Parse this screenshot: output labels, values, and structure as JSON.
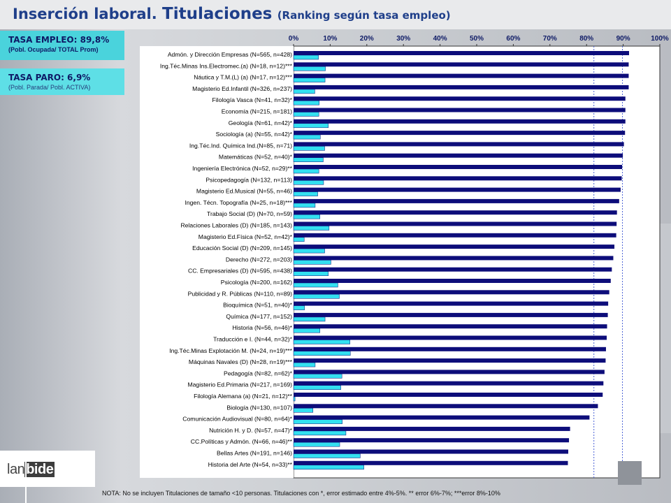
{
  "header": {
    "title_part1": "Inserción laboral.",
    "title_part2": "Titulaciones",
    "title_part3": "(Ranking según tasa empleo)"
  },
  "kpis": {
    "empleo_title": "TASA EMPLEO: 89,8%",
    "empleo_sub": "(Pobl. Ocupada/ TOTAL Prom)",
    "paro_title": "TASA PARO: 6,9%",
    "paro_sub": "(Pobl. Parada/ Pobl. ACTIVA)"
  },
  "logo": {
    "part1": "lan",
    "part2": "bide"
  },
  "note": "NOTA: No se incluyen Titulaciones de tamaño <10 personas. Titulaciones con *, error estimado entre 4%-5%. ** error 6%-7%; ***error 8%-10%",
  "colors": {
    "empleo": "#0d0d7a",
    "paro": "#33e0f0",
    "plot_bg": "#ffffff",
    "title": "#1f3f8a",
    "reference_line": "#4b62d6"
  },
  "chart_data": {
    "type": "bar",
    "orientation": "horizontal",
    "xlim": [
      0,
      100
    ],
    "x_ticks": [
      "0%",
      "10%",
      "20%",
      "30%",
      "40%",
      "50%",
      "60%",
      "70%",
      "80%",
      "90%",
      "100%"
    ],
    "reference_lines": [
      82,
      89.8
    ],
    "categories": [
      "Admón. y Dirección Empresas (N=565, n=428)",
      "Ing.Téc.Minas Ins.Electromec.(a) (N=18, n=12)***",
      "Náutica y T.M.(L) (a) (N=17, n=12)***",
      "Magisterio Ed.Infantil (N=326, n=237)",
      "Filología Vasca (N=41, n=32)*",
      "Economía (N=215, n=181)",
      "Geología (N=61, n=42)*",
      "Sociología (a) (N=55, n=42)*",
      "Ing.Téc.Ind. Química Ind.(N=85, n=71)",
      "Matemáticas (N=52, n=40)*",
      "Ingeniería Electrónica (N=52, n=29)**",
      "Psicopedagogía (N=132, n=113)",
      "Magisterio Ed.Musical (N=55, n=46)",
      "Ingen. Técn. Topografía (N=25, n=18)***",
      "Trabajo Social (D) (N=70, n=59)",
      "Relaciones Laborales (D) (N=185, n=143)",
      "Magisterio Ed.Física (N=52, n=42)*",
      "Educación Social (D) (N=209, n=145)",
      "Derecho (N=272, n=203)",
      "CC. Empresariales (D) (N=595, n=438)",
      "Psicología (N=200, n=162)",
      "Publicidad y R. Públicas (N=110, n=89)",
      "Bioquímica (N=51, n=40)*",
      "Química (N=177, n=152)",
      "Historia (N=56, n=46)*",
      "Traducción e I. (N=44, n=32)*",
      "Ing.Téc.Minas Explotación M. (N=24, n=19)***",
      "Máquinas Navales (D) (N=28, n=19)***",
      "Pedagogía (N=82, n=62)*",
      "Magisterio Ed.Primaria (N=217, n=169)",
      "Filología Alemana (a) (N=21, n=12)**",
      "Biología (N=130, n=107)",
      "Comunicación Audiovisual (N=80, n=64)*",
      "Nutrición H. y D. (N=57, n=47)*",
      "CC.Políticas y Admón. (N=66, n=46)**",
      "Bellas Artes (N=191, n=146)",
      "Historia del Arte (N=54, n=33)**"
    ],
    "series": [
      {
        "values": [
          91.6,
          91.5,
          91.5,
          91.5,
          90.6,
          90.6,
          90.6,
          90.5,
          90.2,
          89.9,
          89.7,
          89.6,
          89.3,
          88.9,
          88.3,
          88.2,
          88.1,
          87.6,
          87.3,
          86.9,
          86.6,
          86.2,
          85.9,
          85.8,
          85.6,
          85.5,
          85.3,
          85.2,
          84.9,
          84.6,
          84.4,
          83.1,
          80.8,
          75.5,
          75.2,
          75.0,
          74.9
        ]
      },
      {
        "values": [
          6.8,
          8.7,
          8.6,
          5.8,
          7.0,
          6.9,
          9.5,
          7.3,
          8.5,
          8.1,
          6.9,
          8.2,
          6.6,
          5.9,
          7.2,
          9.7,
          2.9,
          8.5,
          10.2,
          9.5,
          12.1,
          12.5,
          3.0,
          8.6,
          7.2,
          15.4,
          15.5,
          5.9,
          13.2,
          12.9,
          0.4,
          5.3,
          13.3,
          14.3,
          12.6,
          18.2,
          19.2
        ]
      }
    ]
  }
}
